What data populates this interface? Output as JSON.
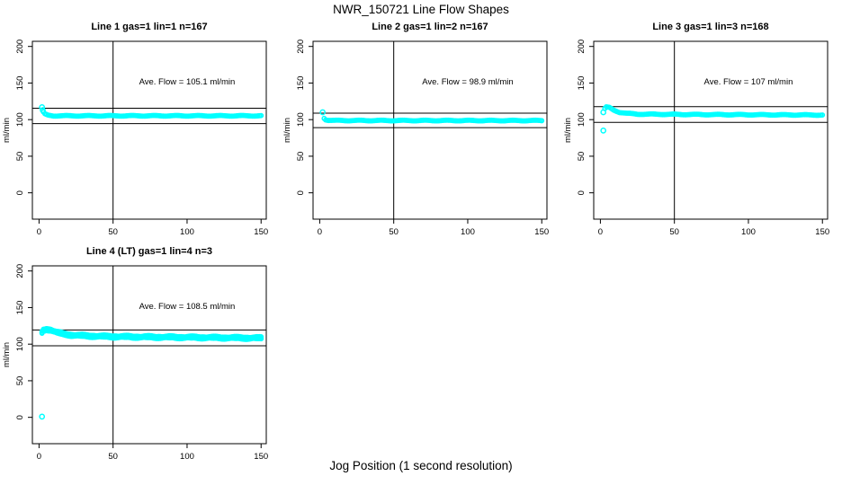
{
  "figure": {
    "title": "NWR_150721  Line Flow Shapes",
    "xlabel": "Jog Position (1 second resolution)",
    "background": "#ffffff",
    "axis_color": "#000000",
    "marker_color": "#00FFFF"
  },
  "chart_data": [
    {
      "type": "scatter",
      "title": "Line 1 gas=1 lin=1 n=167",
      "annotation": "Ave. Flow =  105.1  ml/min",
      "ave_flow_ml_min": 105.1,
      "n": 167,
      "ylabel": "ml/min",
      "x_ticks": [
        0,
        50,
        100,
        150
      ],
      "y_ticks": [
        0,
        50,
        100,
        150,
        200
      ],
      "xlim": [
        -4.5,
        153.5
      ],
      "ylim": [
        -36,
        207
      ],
      "vline_x": 50,
      "hlines": [
        115.6,
        94.6
      ],
      "annotation_pos": [
        100,
        148
      ],
      "outliers": [
        [
          2,
          117
        ],
        [
          2.5,
          113
        ]
      ],
      "anchors": [
        [
          3,
          110
        ],
        [
          4,
          107.5
        ],
        [
          6,
          106
        ],
        [
          10,
          105.2
        ],
        [
          150,
          105.2
        ]
      ],
      "x_start": 3,
      "x_end": 150,
      "jitter": 0.45,
      "layer_offsets": [
        0
      ]
    },
    {
      "type": "scatter",
      "title": "Line 2 gas=1 lin=2 n=167",
      "annotation": "Ave. Flow =  98.9  ml/min",
      "ave_flow_ml_min": 98.9,
      "n": 167,
      "ylabel": "ml/min",
      "x_ticks": [
        0,
        50,
        100,
        150
      ],
      "y_ticks": [
        0,
        50,
        100,
        150,
        200
      ],
      "xlim": [
        -4.5,
        153.5
      ],
      "ylim": [
        -36,
        207
      ],
      "vline_x": 50,
      "hlines": [
        108.8,
        89.0
      ],
      "annotation_pos": [
        100,
        148
      ],
      "outliers": [
        [
          2,
          110
        ]
      ],
      "anchors": [
        [
          3,
          102
        ],
        [
          4,
          100
        ],
        [
          6,
          99.2
        ],
        [
          10,
          98.8
        ],
        [
          150,
          98.7
        ]
      ],
      "x_start": 3,
      "x_end": 150,
      "jitter": 0.45,
      "layer_offsets": [
        0
      ]
    },
    {
      "type": "scatter",
      "title": "Line 3 gas=1 lin=3 n=168",
      "annotation": "Ave. Flow =  107  ml/min",
      "ave_flow_ml_min": 107,
      "n": 168,
      "ylabel": "ml/min",
      "x_ticks": [
        0,
        50,
        100,
        150
      ],
      "y_ticks": [
        0,
        50,
        100,
        150,
        200
      ],
      "xlim": [
        -4.5,
        153.5
      ],
      "ylim": [
        -36,
        207
      ],
      "vline_x": 50,
      "hlines": [
        117.7,
        96.3
      ],
      "annotation_pos": [
        100,
        148
      ],
      "outliers": [
        [
          2,
          85
        ],
        [
          2,
          110
        ]
      ],
      "anchors": [
        [
          3,
          115
        ],
        [
          4,
          117
        ],
        [
          6,
          116.5
        ],
        [
          9,
          113
        ],
        [
          13,
          110
        ],
        [
          18,
          108.5
        ],
        [
          25,
          107.5
        ],
        [
          60,
          107
        ],
        [
          150,
          106.3
        ]
      ],
      "x_start": 3,
      "x_end": 150,
      "jitter": 0.45,
      "layer_offsets": [
        0
      ]
    },
    {
      "type": "scatter",
      "title": "Line 4 (LT) gas=1 lin=4 n=3",
      "annotation": "Ave. Flow =  108.5  ml/min",
      "ave_flow_ml_min": 108.5,
      "n": 3,
      "ylabel": "ml/min",
      "x_ticks": [
        0,
        50,
        100,
        150
      ],
      "y_ticks": [
        0,
        50,
        100,
        150,
        200
      ],
      "xlim": [
        -4.5,
        153.5
      ],
      "ylim": [
        -36,
        207
      ],
      "vline_x": 50,
      "hlines": [
        119.4,
        97.7
      ],
      "annotation_pos": [
        100,
        148
      ],
      "outliers": [
        [
          2,
          1
        ]
      ],
      "anchors": [
        [
          2,
          116
        ],
        [
          3,
          119
        ],
        [
          5,
          120.5
        ],
        [
          8,
          119.5
        ],
        [
          12,
          116
        ],
        [
          16,
          114
        ],
        [
          22,
          112.5
        ],
        [
          30,
          111.5
        ],
        [
          45,
          110.5
        ],
        [
          70,
          109.8
        ],
        [
          100,
          109.3
        ],
        [
          150,
          108.3
        ]
      ],
      "x_start": 2,
      "x_end": 150,
      "jitter": 0.9,
      "layer_offsets": [
        -1.1,
        0,
        1.1
      ]
    }
  ]
}
